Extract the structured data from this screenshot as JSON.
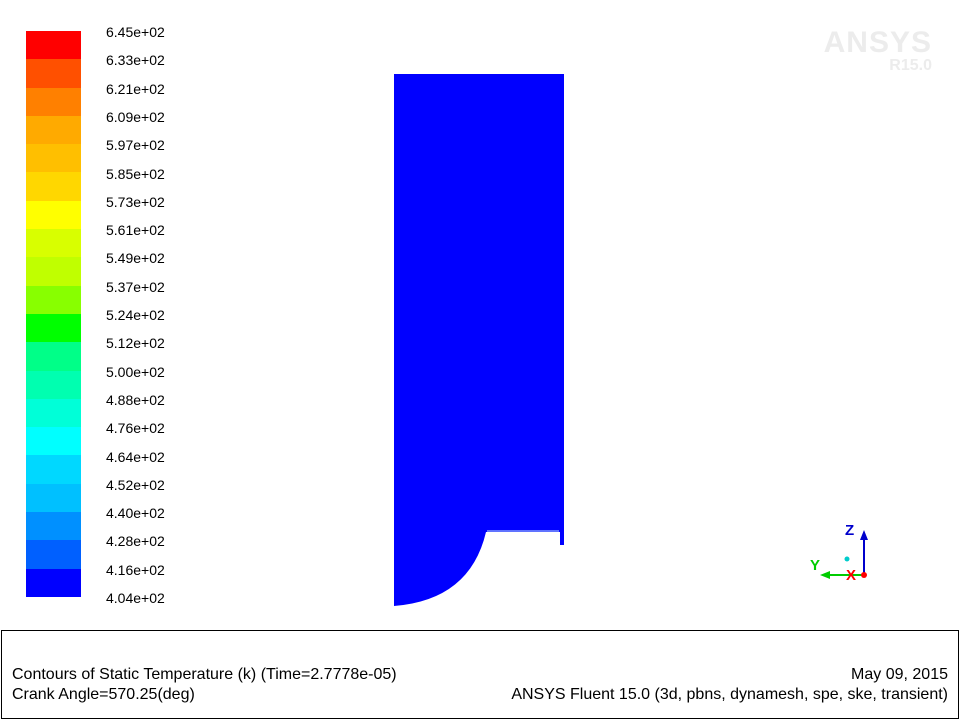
{
  "colorbar": {
    "colors": [
      "#ff0000",
      "#ff5000",
      "#ff8000",
      "#ffaa00",
      "#ffbf00",
      "#ffd700",
      "#ffff00",
      "#d8ff00",
      "#c0ff00",
      "#88ff00",
      "#00ff00",
      "#00ff88",
      "#00ffb0",
      "#00ffd8",
      "#00ffff",
      "#00d8ff",
      "#00c0ff",
      "#0090ff",
      "#0060ff",
      "#0000ff"
    ],
    "labels": [
      "6.45e+02",
      "6.33e+02",
      "6.21e+02",
      "6.09e+02",
      "5.97e+02",
      "5.85e+02",
      "5.73e+02",
      "5.61e+02",
      "5.49e+02",
      "5.37e+02",
      "5.24e+02",
      "5.12e+02",
      "5.00e+02",
      "4.88e+02",
      "4.76e+02",
      "4.64e+02",
      "4.52e+02",
      "4.40e+02",
      "4.28e+02",
      "4.16e+02",
      "4.04e+02"
    ]
  },
  "watermark": {
    "brand": "ANSYS",
    "version": "R15.0"
  },
  "domain_fill_color": "#0000ff",
  "domain_fill_value": "4.04e+02",
  "triad": {
    "z_label": "Z",
    "y_label": "Y",
    "x_label": "X",
    "z_color": "#0000cc",
    "y_color": "#00cc00",
    "x_color": "#ff0000"
  },
  "caption": {
    "title_left": "Contours of Static Temperature (k)  (Time=2.7778e-05)",
    "title_right": "May 09, 2015",
    "sub_left": "Crank Angle=570.25(deg)",
    "sub_right": "ANSYS Fluent 15.0 (3d, pbns, dynamesh, spe, ske, transient)"
  }
}
